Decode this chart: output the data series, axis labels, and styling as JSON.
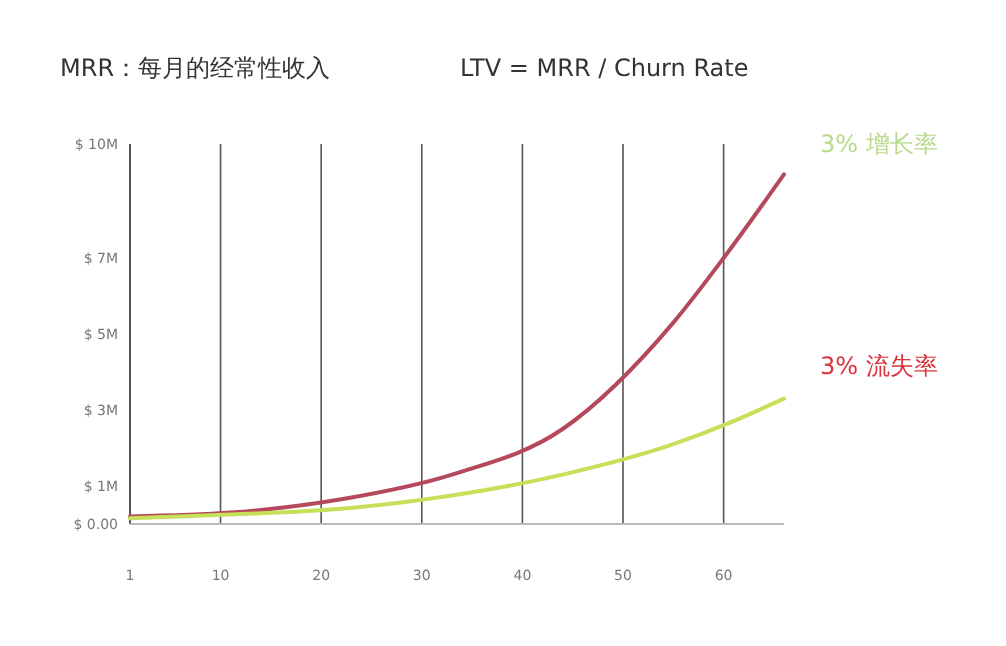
{
  "chart_data": {
    "type": "line",
    "title": "MRR：每月的经常性收入",
    "subtitle": "LTV = MRR / Churn Rate",
    "x": [
      1,
      11,
      22,
      33,
      44,
      55,
      60,
      66
    ],
    "series": [
      {
        "color": "#b5495b",
        "values": [
          0.2,
          0.3,
          0.65,
          1.3,
          2.5,
          5.3,
          7,
          9.2
        ]
      },
      {
        "color": "#c6e05a",
        "values": [
          0.15,
          0.25,
          0.4,
          0.75,
          1.3,
          2.1,
          2.6,
          3.3
        ]
      }
    ],
    "xlim": [
      1,
      66
    ],
    "xticks": [
      1,
      10,
      20,
      30,
      40,
      50,
      60
    ],
    "ylim": [
      0,
      10
    ],
    "yticks": [
      {
        "value": 0,
        "label": "$ 0.00"
      },
      {
        "value": 1,
        "label": "$ 1M"
      },
      {
        "value": 3,
        "label": "$ 3M"
      },
      {
        "value": 5,
        "label": "$ 5M"
      },
      {
        "value": 7,
        "label": "$ 7M"
      },
      {
        "value": 10,
        "label": "$ 10M"
      }
    ],
    "grid": "x",
    "marker": "none",
    "line_style": "solid",
    "annotations": [
      "3% 增长率",
      "3% 流失率"
    ]
  }
}
